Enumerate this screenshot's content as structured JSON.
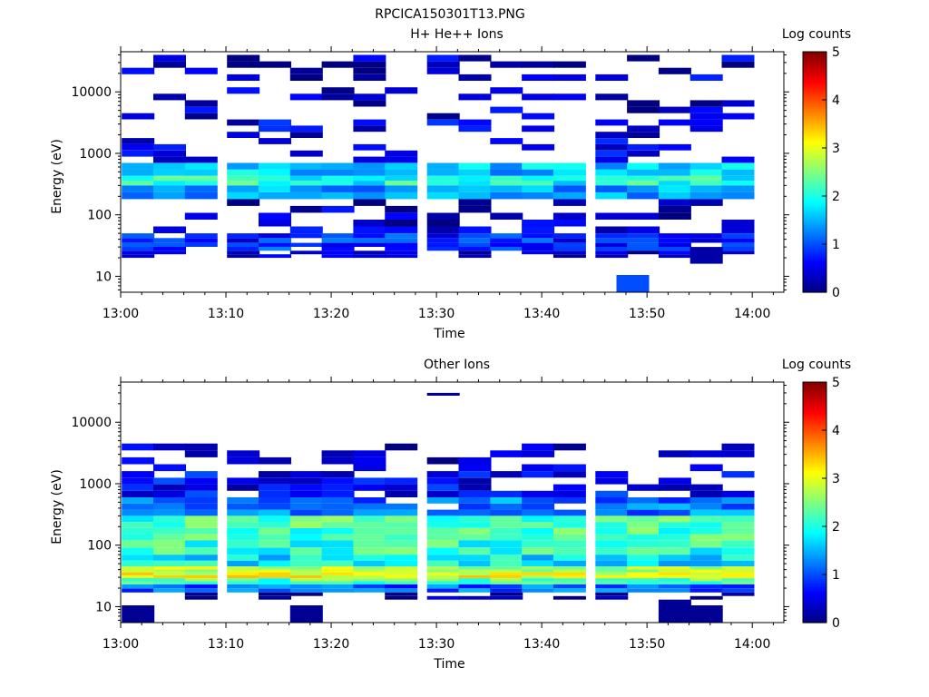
{
  "figure_title": "RPCICA150301T13.PNG",
  "chart_data": [
    {
      "type": "heatmap",
      "title": "H+ He++ Ions",
      "xlabel": "Time",
      "ylabel": "Energy (eV)",
      "colorbar_label": "Log counts",
      "y_scale": "log",
      "ylim": [
        5.5,
        45000
      ],
      "xlim": [
        "13:00",
        "14:03"
      ],
      "x_tick_labels": [
        "13:00",
        "13:10",
        "13:20",
        "13:30",
        "13:40",
        "13:50",
        "14:00"
      ],
      "y_tick_labels": [
        "10",
        "100",
        "1000",
        "10000"
      ],
      "colorbar_ticks": [
        "0",
        "1",
        "2",
        "3",
        "4",
        "5"
      ],
      "clim": [
        0,
        5
      ],
      "time_bins": [
        "13:00",
        "13:03",
        "13:06",
        "13:10",
        "13:13",
        "13:16",
        "13:19",
        "13:22",
        "13:25",
        "13:29",
        "13:32",
        "13:35",
        "13:38",
        "13:41",
        "13:45",
        "13:48",
        "13:51",
        "13:54",
        "13:57"
      ],
      "bands": [
        {
          "e_lo": 4500,
          "e_hi": 40000,
          "level": 0.35,
          "density": 0.3
        },
        {
          "e_lo": 700,
          "e_hi": 4500,
          "level": 0.5,
          "density": 0.35
        },
        {
          "e_lo": 430,
          "e_hi": 700,
          "level": 1.6,
          "density": 1.0
        },
        {
          "e_lo": 300,
          "e_hi": 430,
          "level": 2.0,
          "density": 1.0
        },
        {
          "e_lo": 180,
          "e_hi": 300,
          "level": 1.4,
          "density": 1.0
        },
        {
          "e_lo": 50,
          "e_hi": 180,
          "level": 0.35,
          "density": 0.35
        },
        {
          "e_lo": 35,
          "e_hi": 50,
          "level": 0.8,
          "density": 0.9
        },
        {
          "e_lo": 26,
          "e_hi": 35,
          "level": 0.9,
          "density": 0.9
        },
        {
          "e_lo": 20,
          "e_hi": 26,
          "level": 0.3,
          "density": 0.6
        }
      ],
      "isolated_blocks": [
        {
          "time": "13:47",
          "e_lo": 5.5,
          "e_hi": 10.5,
          "level": 1.0
        },
        {
          "time": "13:54",
          "e_lo": 16,
          "e_hi": 30,
          "level": 0.2
        }
      ]
    },
    {
      "type": "heatmap",
      "title": "Other Ions",
      "xlabel": "Time",
      "ylabel": "Energy (eV)",
      "colorbar_label": "Log counts",
      "y_scale": "log",
      "ylim": [
        5.5,
        45000
      ],
      "xlim": [
        "13:00",
        "14:03"
      ],
      "x_tick_labels": [
        "13:00",
        "13:10",
        "13:20",
        "13:30",
        "13:40",
        "13:50",
        "14:00"
      ],
      "y_tick_labels": [
        "10",
        "100",
        "1000",
        "10000"
      ],
      "colorbar_ticks": [
        "0",
        "1",
        "2",
        "3",
        "4",
        "5"
      ],
      "clim": [
        0,
        5
      ],
      "time_bins": [
        "13:00",
        "13:03",
        "13:06",
        "13:10",
        "13:13",
        "13:16",
        "13:19",
        "13:22",
        "13:25",
        "13:29",
        "13:32",
        "13:35",
        "13:38",
        "13:41",
        "13:45",
        "13:48",
        "13:51",
        "13:54",
        "13:57"
      ],
      "bands": [
        {
          "e_lo": 1600,
          "e_hi": 4500,
          "level": 0.3,
          "density": 0.35
        },
        {
          "e_lo": 600,
          "e_hi": 1600,
          "level": 0.6,
          "density": 0.7
        },
        {
          "e_lo": 300,
          "e_hi": 600,
          "level": 1.2,
          "density": 0.9
        },
        {
          "e_lo": 120,
          "e_hi": 300,
          "level": 2.2,
          "density": 1.0
        },
        {
          "e_lo": 70,
          "e_hi": 120,
          "level": 2.1,
          "density": 1.0
        },
        {
          "e_lo": 45,
          "e_hi": 70,
          "level": 1.8,
          "density": 1.0
        },
        {
          "e_lo": 36,
          "e_hi": 45,
          "level": 2.8,
          "density": 1.0
        },
        {
          "e_lo": 29,
          "e_hi": 36,
          "level": 3.1,
          "density": 1.0
        },
        {
          "e_lo": 23,
          "e_hi": 29,
          "level": 2.3,
          "density": 1.0
        },
        {
          "e_lo": 17,
          "e_hi": 23,
          "level": 1.1,
          "density": 1.0
        },
        {
          "e_lo": 13,
          "e_hi": 17,
          "level": 0.15,
          "density": 0.35
        }
      ],
      "isolated_blocks": [
        {
          "time": "13:00",
          "e_lo": 5.5,
          "e_hi": 10.5,
          "level": 0.1
        },
        {
          "time": "13:16",
          "e_lo": 5.5,
          "e_hi": 10.5,
          "level": 0.1
        },
        {
          "time": "13:51",
          "e_lo": 5.5,
          "e_hi": 13,
          "level": 0.1
        },
        {
          "time": "13:54",
          "e_lo": 5.5,
          "e_hi": 10.5,
          "level": 0.1
        },
        {
          "time": "13:29",
          "e_lo": 27000,
          "e_hi": 30000,
          "level": 0.1
        }
      ]
    }
  ]
}
